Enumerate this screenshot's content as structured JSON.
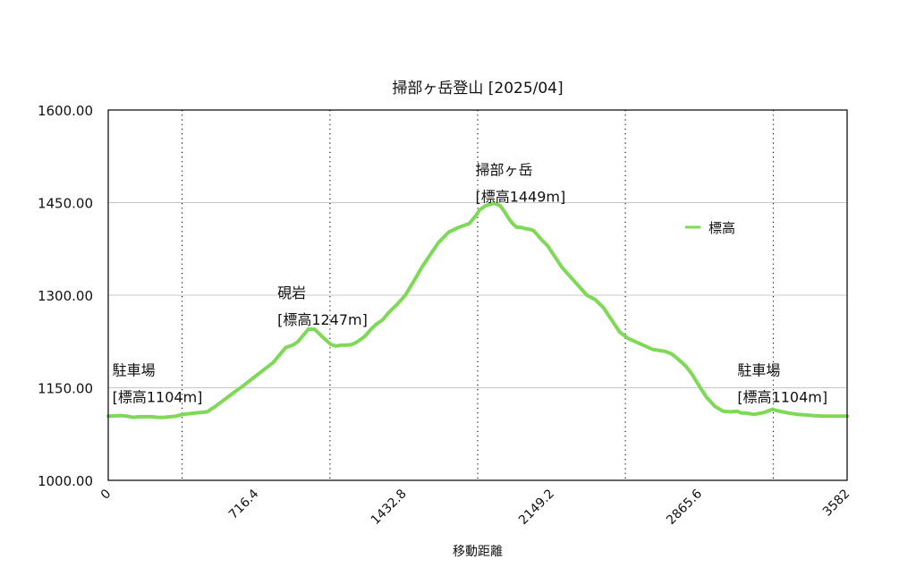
{
  "chart_data": {
    "type": "line",
    "title": "掃部ヶ岳登山 [2025/04]",
    "xlabel": "移動距離",
    "ylabel": "",
    "xlim": [
      0,
      3582
    ],
    "ylim": [
      1000,
      1600
    ],
    "xticks": [
      "0",
      "716.4",
      "1432.8",
      "2149.2",
      "2865.6",
      "3582"
    ],
    "yticks": [
      "1000.00",
      "1150.00",
      "1300.00",
      "1450.00",
      "1600.00"
    ],
    "grid": {
      "horizontal": true,
      "vertical_dotted": true
    },
    "vertical_guides_x": [
      358,
      1075,
      1791,
      2507,
      3224
    ],
    "legend": {
      "position": "right",
      "entries": [
        "標高"
      ]
    },
    "colors": {
      "series": "#7ed957",
      "grid": "#c8c8c8",
      "axis": "#000000"
    },
    "annotations": [
      {
        "lines": [
          "駐車場",
          "[標高1104m]"
        ],
        "x": 20,
        "y": 1170
      },
      {
        "lines": [
          "硯岩",
          "[標高1247m]"
        ],
        "x": 820,
        "y": 1296
      },
      {
        "lines": [
          "掃部ヶ岳",
          "[標高1449m]"
        ],
        "x": 1780,
        "y": 1495
      },
      {
        "lines": [
          "駐車場",
          "[標高1104m]"
        ],
        "x": 3050,
        "y": 1170
      }
    ],
    "series": [
      {
        "name": "標高",
        "x": [
          0,
          60,
          90,
          120,
          150,
          180,
          210,
          240,
          270,
          300,
          330,
          360,
          420,
          480,
          520,
          560,
          600,
          620,
          650,
          700,
          750,
          800,
          860,
          900,
          920,
          950,
          970,
          1000,
          1040,
          1080,
          1090,
          1100,
          1110,
          1130,
          1150,
          1180,
          1200,
          1240,
          1280,
          1300,
          1330,
          1360,
          1400,
          1440,
          1480,
          1520,
          1560,
          1600,
          1650,
          1700,
          1750,
          1780,
          1800,
          1830,
          1870,
          1900,
          1920,
          1940,
          1960,
          1980,
          2000,
          2020,
          2040,
          2060,
          2080,
          2100,
          2130,
          2160,
          2200,
          2240,
          2280,
          2320,
          2360,
          2400,
          2440,
          2480,
          2520,
          2560,
          2600,
          2640,
          2680,
          2700,
          2730,
          2750,
          2770,
          2800,
          2830,
          2870,
          2900,
          2940,
          2980,
          3020,
          3050,
          3070,
          3090,
          3110,
          3130,
          3150,
          3180,
          3220,
          3240,
          3270,
          3300,
          3340,
          3380,
          3420,
          3460,
          3500,
          3540,
          3582
        ],
        "values": [
          1104,
          1105,
          1104,
          1102,
          1103,
          1103,
          1103,
          1102,
          1102,
          1103,
          1104,
          1107,
          1109,
          1111,
          1120,
          1130,
          1140,
          1145,
          1152,
          1165,
          1178,
          1191,
          1215,
          1220,
          1225,
          1237,
          1245,
          1245,
          1232,
          1220,
          1219,
          1218,
          1218,
          1219,
          1219,
          1220,
          1223,
          1232,
          1247,
          1253,
          1260,
          1272,
          1285,
          1300,
          1322,
          1345,
          1365,
          1385,
          1402,
          1410,
          1416,
          1428,
          1438,
          1445,
          1449,
          1445,
          1436,
          1425,
          1416,
          1410,
          1410,
          1408,
          1407,
          1405,
          1398,
          1390,
          1380,
          1365,
          1345,
          1330,
          1315,
          1300,
          1293,
          1280,
          1260,
          1240,
          1230,
          1224,
          1218,
          1212,
          1210,
          1209,
          1205,
          1200,
          1194,
          1185,
          1172,
          1150,
          1135,
          1120,
          1112,
          1111,
          1112,
          1109,
          1109,
          1108,
          1107,
          1108,
          1110,
          1115,
          1113,
          1111,
          1109,
          1107,
          1106,
          1105,
          1104,
          1104,
          1104,
          1104
        ]
      }
    ]
  }
}
